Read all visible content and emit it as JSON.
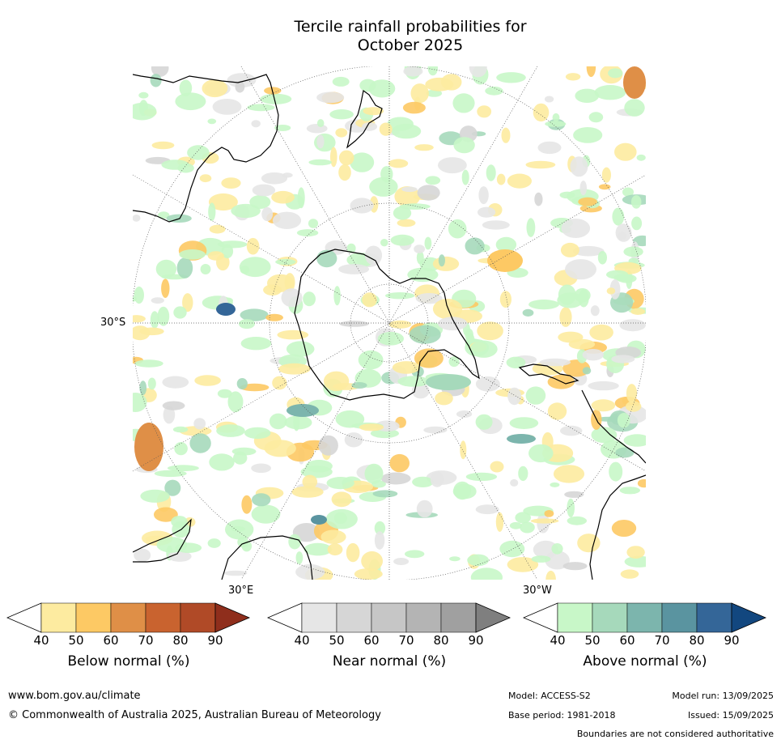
{
  "title": {
    "line1": "Tercile rainfall probabilities for",
    "line2": "October 2025"
  },
  "map": {
    "projection": "south-polar-stereographic",
    "lat_label": "30°S",
    "lon_labels": {
      "east": "30°E",
      "west": "30°W"
    }
  },
  "colorbars": [
    {
      "label": "Below normal (%)",
      "ticks": [
        "40",
        "50",
        "60",
        "70",
        "80",
        "90"
      ],
      "colors": [
        "#fdeba0",
        "#fdc964",
        "#df8f47",
        "#c9632f",
        "#b04a27",
        "#8f2e1c"
      ]
    },
    {
      "label": "Near normal (%)",
      "ticks": [
        "40",
        "50",
        "60",
        "70",
        "80",
        "90"
      ],
      "colors": [
        "#e6e6e6",
        "#d6d6d6",
        "#c6c6c6",
        "#b4b4b4",
        "#a0a0a0",
        "#7f7f7f"
      ]
    },
    {
      "label": "Above normal (%)",
      "ticks": [
        "40",
        "50",
        "60",
        "70",
        "80",
        "90"
      ],
      "colors": [
        "#c8f7c8",
        "#a6d9bb",
        "#7cb5ad",
        "#5a94a0",
        "#346698",
        "#12477f"
      ]
    }
  ],
  "footer": {
    "url": "www.bom.gov.au/climate",
    "copyright": "© Commonwealth of Australia 2025, Australian Bureau of Meteorology",
    "model": "Model: ACCESS-S2",
    "base_period": "Base period: 1981-2018",
    "model_run": "Model run: 13/09/2025",
    "issued": "Issued: 15/09/2025",
    "disclaimer": "Boundaries are not considered authoritative"
  }
}
